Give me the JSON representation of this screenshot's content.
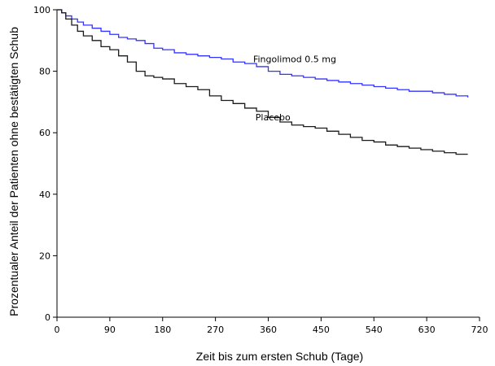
{
  "chart_data": {
    "type": "line",
    "title": "",
    "xlabel": "Zeit bis zum ersten Schub (Tage)",
    "ylabel": "Prozentualer Anteil der Patienten ohne bestätigten Schub",
    "xlim": [
      0,
      720
    ],
    "ylim": [
      0,
      100
    ],
    "xticks": [
      0,
      90,
      180,
      270,
      360,
      450,
      540,
      630,
      720
    ],
    "yticks": [
      0,
      20,
      40,
      60,
      80,
      100
    ],
    "grid": false,
    "series": [
      {
        "name": "Fingolimod 0.5 mg",
        "color": "#3333ff",
        "label_at": [
          405,
          83
        ],
        "x": [
          0,
          8,
          15,
          25,
          35,
          45,
          60,
          75,
          90,
          105,
          120,
          135,
          150,
          165,
          180,
          200,
          220,
          240,
          260,
          280,
          300,
          320,
          340,
          360,
          380,
          400,
          420,
          440,
          460,
          480,
          500,
          520,
          540,
          560,
          580,
          600,
          620,
          640,
          660,
          680,
          700
        ],
        "y": [
          100,
          99,
          98,
          97,
          96,
          95,
          94,
          93,
          92,
          91,
          90.5,
          90,
          89,
          87.5,
          87,
          86,
          85.5,
          85,
          84.5,
          84,
          83,
          82.5,
          81.5,
          80,
          79,
          78.5,
          78,
          77.5,
          77,
          76.5,
          76,
          75.5,
          75,
          74.5,
          74,
          73.5,
          73.5,
          73,
          72.5,
          72,
          71.5
        ]
      },
      {
        "name": "Placebo",
        "color": "#1a1a1a",
        "label_at": [
          368,
          64
        ],
        "x": [
          0,
          8,
          15,
          25,
          35,
          45,
          60,
          75,
          90,
          105,
          120,
          135,
          150,
          165,
          180,
          200,
          220,
          240,
          260,
          280,
          300,
          320,
          340,
          360,
          380,
          400,
          420,
          440,
          460,
          480,
          500,
          520,
          540,
          560,
          580,
          600,
          620,
          640,
          660,
          680,
          700
        ],
        "y": [
          100,
          99,
          97,
          95,
          93,
          91.5,
          90,
          88,
          87,
          85,
          83,
          80,
          78.5,
          78,
          77.5,
          76,
          75,
          74,
          72,
          70.5,
          69.5,
          68,
          67,
          65,
          63.5,
          62.5,
          62,
          61.5,
          60.5,
          59.5,
          58.5,
          57.5,
          57,
          56,
          55.5,
          55,
          54.5,
          54,
          53.5,
          53,
          53
        ]
      }
    ]
  }
}
